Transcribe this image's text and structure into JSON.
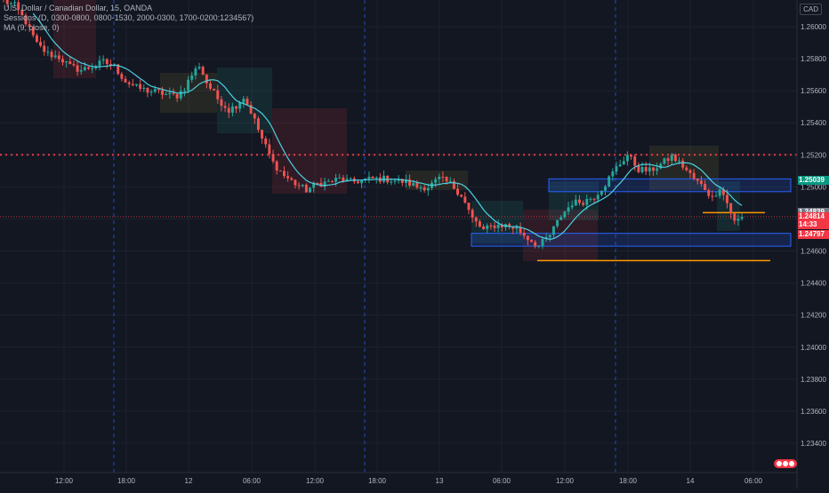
{
  "legend": {
    "symbol_line": "U.S. Dollar / Canadian Dollar, 15, OANDA",
    "sessions_line": "Sessions (D, 0300-0800, 0800-1530, 2000-0300, 1700-0200:1234567)",
    "ma_line": "MA (9, close, 0)"
  },
  "currency_badge": "CAD",
  "colors": {
    "background": "#131722",
    "bull": "#26a69a",
    "bear": "#ef5350",
    "ma_line": "#4dd0e1",
    "grid": "#1e222d",
    "session_line": "#2962ff",
    "resistance_dotted": "#f23645",
    "blue_box": "#2962ff",
    "orange_line": "#ff9800"
  },
  "price_tags": [
    {
      "label": "1.25039",
      "bg": "#089981",
      "fg": "#ffffff",
      "price": 1.25039
    },
    {
      "label": "1.24839",
      "bg": "#787b86",
      "fg": "#ffffff",
      "price": 1.24839
    },
    {
      "label": "1.24814",
      "bg": "#f23645",
      "fg": "#ffffff",
      "price": 1.24814
    },
    {
      "label": "14:33",
      "bg": "#f23645",
      "fg": "#ffffff",
      "price": 1.24765
    },
    {
      "label": "1.24797",
      "bg": "#f23645",
      "fg": "#ffffff",
      "price": 1.24705
    }
  ],
  "chart_data": {
    "type": "candlestick",
    "y_ticks": [
      "1.26000",
      "1.25800",
      "1.25600",
      "1.25400",
      "1.25200",
      "1.25000",
      "1.24800",
      "1.24600",
      "1.24400",
      "1.24200",
      "1.24000",
      "1.23800",
      "1.23600",
      "1.23400"
    ],
    "x_ticks": [
      "12:00",
      "18:00",
      "12",
      "06:00",
      "12:00",
      "18:00",
      "13",
      "06:00",
      "12:00",
      "18:00",
      "14",
      "06:00"
    ],
    "ylim": [
      1.2322,
      1.2616
    ],
    "close_path": [
      [
        0,
        1.2616
      ],
      [
        3,
        1.2613
      ],
      [
        6,
        1.2603
      ],
      [
        9,
        1.2589
      ],
      [
        12,
        1.2583
      ],
      [
        15,
        1.2581
      ],
      [
        18,
        1.2575
      ],
      [
        21,
        1.2573
      ],
      [
        24,
        1.2575
      ],
      [
        27,
        1.2578
      ],
      [
        30,
        1.2575
      ],
      [
        33,
        1.2566
      ],
      [
        36,
        1.2562
      ],
      [
        39,
        1.256
      ],
      [
        42,
        1.2559
      ],
      [
        45,
        1.2557
      ],
      [
        47,
        1.2557
      ],
      [
        49,
        1.2562
      ],
      [
        51,
        1.257
      ],
      [
        53,
        1.2576
      ],
      [
        55,
        1.2565
      ],
      [
        58,
        1.2555
      ],
      [
        61,
        1.2548
      ],
      [
        63,
        1.2551
      ],
      [
        65,
        1.2556
      ],
      [
        67,
        1.2547
      ],
      [
        70,
        1.253
      ],
      [
        73,
        1.2515
      ],
      [
        76,
        1.2507
      ],
      [
        79,
        1.2502
      ],
      [
        82,
        1.2498
      ],
      [
        85,
        1.2502
      ],
      [
        88,
        1.2503
      ],
      [
        91,
        1.2505
      ],
      [
        94,
        1.2503
      ],
      [
        97,
        1.2504
      ],
      [
        100,
        1.2505
      ],
      [
        103,
        1.2505
      ],
      [
        106,
        1.2504
      ],
      [
        109,
        1.2503
      ],
      [
        112,
        1.25
      ],
      [
        115,
        1.25
      ],
      [
        118,
        1.2505
      ],
      [
        121,
        1.2502
      ],
      [
        124,
        1.2495
      ],
      [
        127,
        1.248
      ],
      [
        130,
        1.2473
      ],
      [
        133,
        1.2476
      ],
      [
        136,
        1.2476
      ],
      [
        139,
        1.2474
      ],
      [
        142,
        1.2468
      ],
      [
        145,
        1.2463
      ],
      [
        148,
        1.247
      ],
      [
        151,
        1.2482
      ],
      [
        154,
        1.249
      ],
      [
        157,
        1.2491
      ],
      [
        160,
        1.2494
      ],
      [
        163,
        1.2502
      ],
      [
        166,
        1.2512
      ],
      [
        169,
        1.252
      ],
      [
        172,
        1.2511
      ],
      [
        175,
        1.251
      ],
      [
        178,
        1.2514
      ],
      [
        181,
        1.2519
      ],
      [
        184,
        1.2513
      ],
      [
        187,
        1.2505
      ],
      [
        190,
        1.2499
      ],
      [
        192,
        1.2493
      ],
      [
        194,
        1.25
      ],
      [
        196,
        1.249
      ],
      [
        198,
        1.2478
      ],
      [
        200,
        1.2481
      ]
    ],
    "ma": {
      "name": "MA (9, close, 0)",
      "period": 9
    }
  }
}
